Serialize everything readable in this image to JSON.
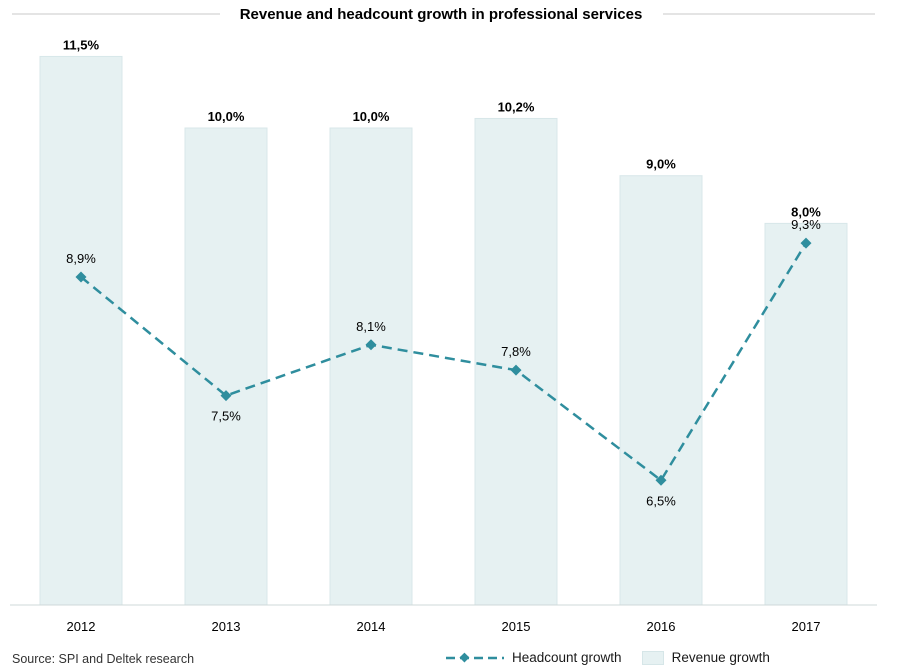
{
  "chart_data": {
    "type": "bar",
    "title": "Revenue and headcount growth in professional services",
    "categories": [
      "2012",
      "2013",
      "2014",
      "2015",
      "2016",
      "2017"
    ],
    "series": [
      {
        "name": "Revenue growth",
        "kind": "bar",
        "values": [
          11.5,
          10.0,
          10.0,
          10.2,
          9.0,
          8.0
        ],
        "labels": [
          "11,5%",
          "10,0%",
          "10,0%",
          "10,2%",
          "9,0%",
          "8,0%"
        ],
        "color": "#e6f1f2"
      },
      {
        "name": "Headcount growth",
        "kind": "line",
        "style": "dashed",
        "marker": "diamond",
        "values": [
          8.9,
          7.5,
          8.1,
          7.8,
          6.5,
          9.3
        ],
        "labels": [
          "8,9%",
          "7,5%",
          "8,1%",
          "7,8%",
          "6,5%",
          "9,3%"
        ],
        "color": "#2f8e9e"
      }
    ],
    "xlabel": "",
    "ylabel": "",
    "grid": false,
    "legend_position": "bottom-right"
  },
  "source": "Source: SPI and Deltek research"
}
